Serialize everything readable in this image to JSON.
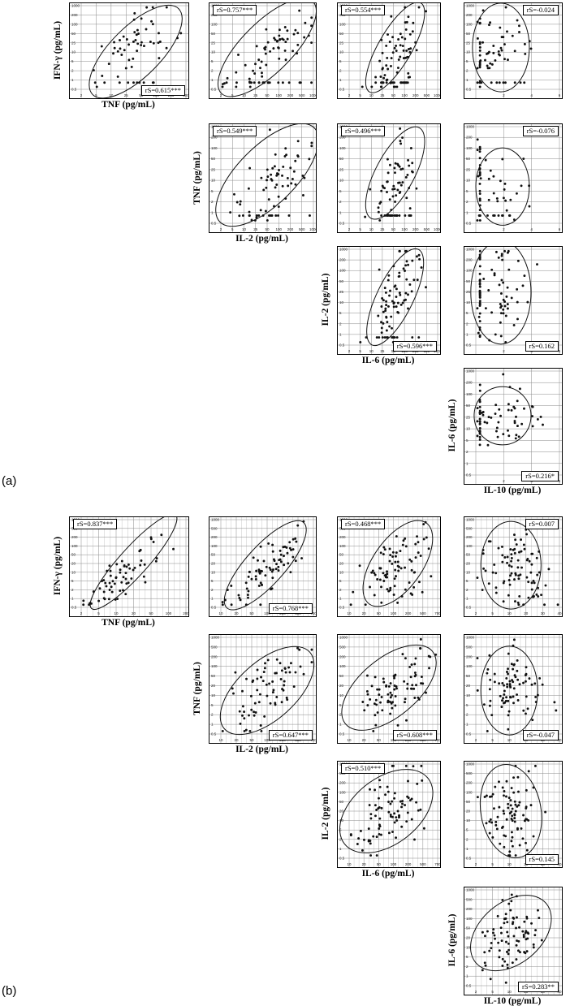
{
  "figure_parts": [
    "(a)",
    "(b)"
  ],
  "variables": {
    "IFN": "IFN-γ (pg/mL)",
    "TNF": "TNF (pg/mL)",
    "IL2": "IL-2 (pg/mL)",
    "IL6": "IL-6 (pg/mL)",
    "IL10": "IL-10 (pg/mL)"
  },
  "chart_data": [
    {
      "type": "scatter",
      "part": "(a)",
      "x_var": "TNF",
      "y_var": "IFN",
      "rs": "rS=0.615***",
      "n": 60,
      "r": 0.61,
      "mx": 0.5,
      "my": 0.5,
      "sx": 0.2,
      "sy": 0.22,
      "jit": 0.6,
      "ellipse": [
        0.52,
        0.45,
        0.58,
        0.3,
        -45
      ],
      "xt": [
        "2",
        "5",
        "10",
        "25",
        "50",
        "100",
        "200",
        "500"
      ],
      "yt": [
        "0.5",
        "1",
        "2",
        "5",
        "10",
        "25",
        "50",
        "100",
        "200",
        "1000"
      ],
      "floor_x": false,
      "floor_y": true
    },
    {
      "type": "scatter",
      "part": "(a)",
      "x_var": "IL2",
      "y_var": "IFN",
      "rs": "rS=0.757***",
      "n": 80,
      "r": 0.76,
      "mx": 0.55,
      "my": 0.42,
      "sx": 0.22,
      "sy": 0.22,
      "jit": 0.5,
      "ellipse": [
        0.5,
        0.5,
        0.7,
        0.3,
        -45
      ],
      "xt": [
        "2",
        "5",
        "10",
        "25",
        "50",
        "100",
        "200",
        "500",
        "1000"
      ],
      "yt": [
        "0.5",
        "1",
        "2",
        "5",
        "10",
        "25",
        "50",
        "100",
        "200",
        "1000"
      ],
      "floor_x": false,
      "floor_y": true
    },
    {
      "type": "scatter",
      "part": "(a)",
      "x_var": "IL6",
      "y_var": "IFN",
      "rs": "rS=0.554***",
      "n": 85,
      "r": 0.55,
      "mx": 0.52,
      "my": 0.4,
      "sx": 0.13,
      "sy": 0.25,
      "jit": 0.4,
      "ellipse": [
        0.52,
        0.5,
        0.58,
        0.2,
        -60
      ],
      "xt": [
        "2",
        "5",
        "10",
        "25",
        "50",
        "100",
        "200",
        "500",
        "1000"
      ],
      "yt": [
        "0.5",
        "1",
        "2",
        "5",
        "10",
        "25",
        "50",
        "100",
        "200",
        "1000"
      ],
      "floor_x": false,
      "floor_y": true
    },
    {
      "type": "scatter",
      "part": "(a)",
      "x_var": "IL10",
      "y_var": "IFN",
      "rs": "rS=-0.024",
      "n": 70,
      "r": -0.02,
      "mx": 0.3,
      "my": 0.52,
      "sx": 0.18,
      "sy": 0.22,
      "jit": 0.3,
      "ellipse": [
        0.3,
        0.5,
        0.34,
        0.53,
        0
      ],
      "xt": [
        "",
        "2",
        "4",
        "6"
      ],
      "yt": [
        "0.5",
        "1",
        "2",
        "5",
        "10",
        "25",
        "50",
        "100",
        "200",
        "1000"
      ],
      "floor_x": true,
      "floor_y": true
    },
    {
      "type": "scatter",
      "part": "(a)",
      "x_var": "IL2",
      "y_var": "TNF",
      "rs": "rS=0.549***",
      "n": 75,
      "r": 0.55,
      "mx": 0.55,
      "my": 0.45,
      "sx": 0.22,
      "sy": 0.22,
      "jit": 0.5,
      "ellipse": [
        0.5,
        0.5,
        0.72,
        0.3,
        -45
      ],
      "xt": [
        "2",
        "5",
        "10",
        "25",
        "50",
        "100",
        "200",
        "500",
        "1000"
      ],
      "yt": [
        "0.5",
        "1",
        "2",
        "5",
        "10",
        "25",
        "50",
        "100",
        "200",
        "1000"
      ],
      "floor_x": false,
      "floor_y": true
    },
    {
      "type": "scatter",
      "part": "(a)",
      "x_var": "IL6",
      "y_var": "TNF",
      "rs": "rS=0.496***",
      "n": 75,
      "r": 0.5,
      "mx": 0.52,
      "my": 0.42,
      "sx": 0.13,
      "sy": 0.22,
      "jit": 0.4,
      "ellipse": [
        0.52,
        0.52,
        0.58,
        0.2,
        -62
      ],
      "xt": [
        "2",
        "5",
        "10",
        "25",
        "50",
        "100",
        "200",
        "500",
        "1000"
      ],
      "yt": [
        "0.5",
        "1",
        "2",
        "5",
        "10",
        "25",
        "50",
        "100",
        "200",
        "1000"
      ],
      "floor_x": false,
      "floor_y": true
    },
    {
      "type": "scatter",
      "part": "(a)",
      "x_var": "IL10",
      "y_var": "TNF",
      "rs": "rS=-0.076",
      "n": 60,
      "r": -0.08,
      "mx": 0.3,
      "my": 0.45,
      "sx": 0.18,
      "sy": 0.22,
      "jit": 0.3,
      "ellipse": [
        0.32,
        0.38,
        0.32,
        0.4,
        0
      ],
      "xt": [
        "",
        "2",
        "4",
        "6"
      ],
      "yt": [
        "0.5",
        "1",
        "2",
        "5",
        "10",
        "25",
        "50",
        "100",
        "200",
        "1000"
      ],
      "floor_x": true,
      "floor_y": true
    },
    {
      "type": "scatter",
      "part": "(a)",
      "x_var": "IL6",
      "y_var": "IL2",
      "rs": "rS=0.596***",
      "n": 90,
      "r": 0.6,
      "mx": 0.52,
      "my": 0.5,
      "sx": 0.13,
      "sy": 0.25,
      "jit": 0.4,
      "ellipse": [
        0.52,
        0.5,
        0.6,
        0.19,
        -64
      ],
      "xt": [
        "2",
        "5",
        "10",
        "25",
        "50",
        "100",
        "200",
        "500",
        "1000"
      ],
      "yt": [
        "0.5",
        "1",
        "2",
        "5",
        "10",
        "25",
        "50",
        "100",
        "200",
        "1000"
      ],
      "floor_x": false,
      "floor_y": true
    },
    {
      "type": "scatter",
      "part": "(a)",
      "x_var": "IL10",
      "y_var": "IL2",
      "rs": "rS=0.162",
      "n": 85,
      "r": 0.16,
      "mx": 0.3,
      "my": 0.55,
      "sx": 0.18,
      "sy": 0.22,
      "jit": 0.3,
      "ellipse": [
        0.3,
        0.55,
        0.36,
        0.54,
        0
      ],
      "xt": [
        "",
        "2",
        "4",
        "6"
      ],
      "yt": [
        "0.5",
        "1",
        "2",
        "5",
        "10",
        "25",
        "50",
        "100",
        "200",
        "1000"
      ],
      "floor_x": true,
      "floor_y": false
    },
    {
      "type": "scatter",
      "part": "(a)",
      "x_var": "IL10",
      "y_var": "IL6",
      "rs": "rS=0.216*",
      "n": 70,
      "r": 0.22,
      "mx": 0.35,
      "my": 0.55,
      "sx": 0.2,
      "sy": 0.15,
      "jit": 0.3,
      "ellipse": [
        0.32,
        0.57,
        0.34,
        0.28,
        0
      ],
      "xt": [
        "",
        "2",
        "4",
        "6"
      ],
      "yt": [
        "0.5",
        "1",
        "2",
        "5",
        "10",
        "25",
        "50",
        "100",
        "200",
        "1000"
      ],
      "floor_x": true,
      "floor_y": false
    },
    {
      "type": "scatter",
      "part": "(b)",
      "x_var": "TNF",
      "y_var": "IFN",
      "rs": "rS=0.837***",
      "n": 65,
      "r": 0.84,
      "mx": 0.45,
      "my": 0.42,
      "sx": 0.2,
      "sy": 0.22,
      "jit": 0.5,
      "ellipse": [
        0.5,
        0.52,
        0.6,
        0.16,
        -48
      ],
      "xt": [
        "2",
        "5",
        "10",
        "20",
        "50",
        "100",
        "200"
      ],
      "yt": [
        "0.5",
        "1",
        "2",
        "5",
        "10",
        "20",
        "50",
        "100",
        "200",
        "500",
        "1000"
      ],
      "floor_x": false,
      "floor_y": false
    },
    {
      "type": "scatter",
      "part": "(b)",
      "x_var": "IL2",
      "y_var": "IFN",
      "rs": "rS=0.768***",
      "n": 80,
      "r": 0.77,
      "mx": 0.5,
      "my": 0.42,
      "sx": 0.22,
      "sy": 0.22,
      "jit": 0.5,
      "ellipse": [
        0.48,
        0.48,
        0.62,
        0.22,
        -48
      ],
      "xt": [
        "10",
        "20",
        "50",
        "100",
        "200",
        "500",
        "700"
      ],
      "yt": [
        "0.5",
        "1",
        "2",
        "5",
        "10",
        "20",
        "50",
        "100",
        "200",
        "500",
        "1000"
      ],
      "floor_x": false,
      "floor_y": false
    },
    {
      "type": "scatter",
      "part": "(b)",
      "x_var": "IL6",
      "y_var": "IFN",
      "rs": "rS=0.468***",
      "n": 85,
      "r": 0.47,
      "mx": 0.5,
      "my": 0.42,
      "sx": 0.2,
      "sy": 0.22,
      "jit": 0.5,
      "ellipse": [
        0.55,
        0.5,
        0.56,
        0.28,
        -55
      ],
      "xt": [
        "10",
        "20",
        "50",
        "100",
        "200",
        "500",
        "700"
      ],
      "yt": [
        "0.5",
        "1",
        "2",
        "5",
        "10",
        "20",
        "50",
        "100",
        "200",
        "500",
        "1000"
      ],
      "floor_x": false,
      "floor_y": false
    },
    {
      "type": "scatter",
      "part": "(b)",
      "x_var": "IL10",
      "y_var": "IFN",
      "rs": "rS=0.007",
      "n": 90,
      "r": 0.01,
      "mx": 0.45,
      "my": 0.45,
      "sx": 0.2,
      "sy": 0.25,
      "jit": 0.4,
      "ellipse": [
        0.42,
        0.48,
        0.36,
        0.5,
        0
      ],
      "xt": [
        "2",
        "5",
        "10",
        "20",
        "30",
        "40"
      ],
      "yt": [
        "0.5",
        "1",
        "2",
        "5",
        "10",
        "20",
        "50",
        "100",
        "200",
        "500",
        "1000"
      ],
      "floor_x": false,
      "floor_y": false
    },
    {
      "type": "scatter",
      "part": "(b)",
      "x_var": "IL2",
      "y_var": "TNF",
      "rs": "rS=0.647***",
      "n": 75,
      "r": 0.65,
      "mx": 0.5,
      "my": 0.45,
      "sx": 0.22,
      "sy": 0.2,
      "jit": 0.5,
      "ellipse": [
        0.5,
        0.45,
        0.62,
        0.3,
        -42
      ],
      "xt": [
        "10",
        "20",
        "50",
        "100",
        "200",
        "500",
        "700"
      ],
      "yt": [
        "0.5",
        "1",
        "2",
        "5",
        "10",
        "20",
        "50",
        "100",
        "200",
        "500",
        "1000"
      ],
      "floor_x": false,
      "floor_y": false
    },
    {
      "type": "scatter",
      "part": "(b)",
      "x_var": "IL6",
      "y_var": "TNF",
      "rs": "rS=0.608***",
      "n": 85,
      "r": 0.61,
      "mx": 0.5,
      "my": 0.45,
      "sx": 0.22,
      "sy": 0.2,
      "jit": 0.5,
      "ellipse": [
        0.45,
        0.48,
        0.64,
        0.3,
        -40
      ],
      "xt": [
        "10",
        "20",
        "50",
        "100",
        "200",
        "500",
        "700"
      ],
      "yt": [
        "0.5",
        "1",
        "2",
        "5",
        "10",
        "20",
        "50",
        "100",
        "200",
        "500",
        "1000"
      ],
      "floor_x": false,
      "floor_y": false
    },
    {
      "type": "scatter",
      "part": "(b)",
      "x_var": "IL10",
      "y_var": "TNF",
      "rs": "rS=-0.047",
      "n": 85,
      "r": -0.05,
      "mx": 0.42,
      "my": 0.47,
      "sx": 0.18,
      "sy": 0.2,
      "jit": 0.4,
      "ellipse": [
        0.4,
        0.45,
        0.34,
        0.46,
        0
      ],
      "xt": [
        "2",
        "5",
        "10",
        "20",
        "30",
        "40"
      ],
      "yt": [
        "0.5",
        "1",
        "2",
        "5",
        "10",
        "20",
        "50",
        "100",
        "200",
        "500",
        "1000"
      ],
      "floor_x": false,
      "floor_y": false
    },
    {
      "type": "scatter",
      "part": "(b)",
      "x_var": "IL6",
      "y_var": "IL2",
      "rs": "rS=0.510***",
      "n": 85,
      "r": 0.51,
      "mx": 0.45,
      "my": 0.48,
      "sx": 0.2,
      "sy": 0.22,
      "jit": 0.5,
      "ellipse": [
        0.42,
        0.5,
        0.6,
        0.35,
        -38
      ],
      "xt": [
        "10",
        "20",
        "50",
        "100",
        "200",
        "500",
        "700"
      ],
      "yt": [
        "0.5",
        "1",
        "2",
        "5",
        "10",
        "20",
        "50",
        "100",
        "200",
        "500",
        "1000"
      ],
      "floor_x": false,
      "floor_y": false
    },
    {
      "type": "scatter",
      "part": "(b)",
      "x_var": "IL10",
      "y_var": "IL2",
      "rs": "rS=0.145",
      "n": 90,
      "r": 0.15,
      "mx": 0.42,
      "my": 0.5,
      "sx": 0.18,
      "sy": 0.22,
      "jit": 0.4,
      "ellipse": [
        0.42,
        0.5,
        0.36,
        0.5,
        -10
      ],
      "xt": [
        "2",
        "5",
        "10",
        "20",
        "30",
        "40"
      ],
      "yt": [
        "0.5",
        "1",
        "2",
        "5",
        "10",
        "20",
        "50",
        "100",
        "200",
        "500",
        "1000"
      ],
      "floor_x": false,
      "floor_y": false
    },
    {
      "type": "scatter",
      "part": "(b)",
      "x_var": "IL10",
      "y_var": "IL6",
      "rs": "rS=0.283**",
      "n": 85,
      "r": 0.28,
      "mx": 0.42,
      "my": 0.5,
      "sx": 0.18,
      "sy": 0.2,
      "jit": 0.4,
      "ellipse": [
        0.42,
        0.55,
        0.55,
        0.32,
        -40
      ],
      "xt": [
        "2",
        "5",
        "10",
        "20",
        "30",
        "40"
      ],
      "yt": [
        "0.5",
        "1",
        "2",
        "5",
        "10",
        "20",
        "50",
        "100",
        "200",
        "500",
        "1000"
      ],
      "floor_x": false,
      "floor_y": false
    }
  ]
}
